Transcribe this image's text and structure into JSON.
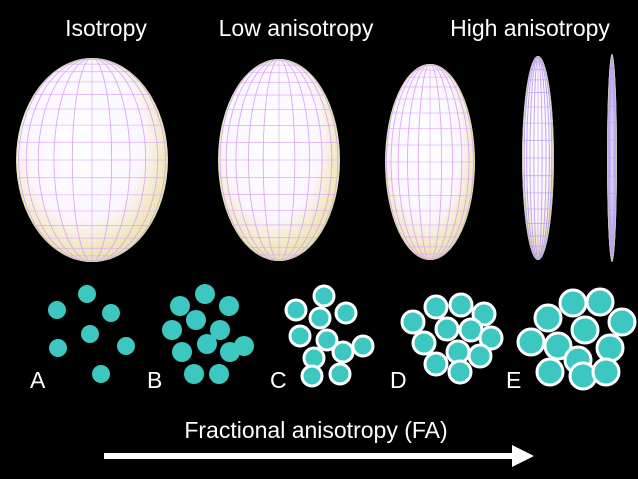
{
  "titles": [
    "Isotropy",
    "Low anisotropy",
    "High anisotropy"
  ],
  "labels": [
    "A",
    "B",
    "C",
    "D",
    "E"
  ],
  "arrow_label": "Fractional anisotropy (FA)"
}
